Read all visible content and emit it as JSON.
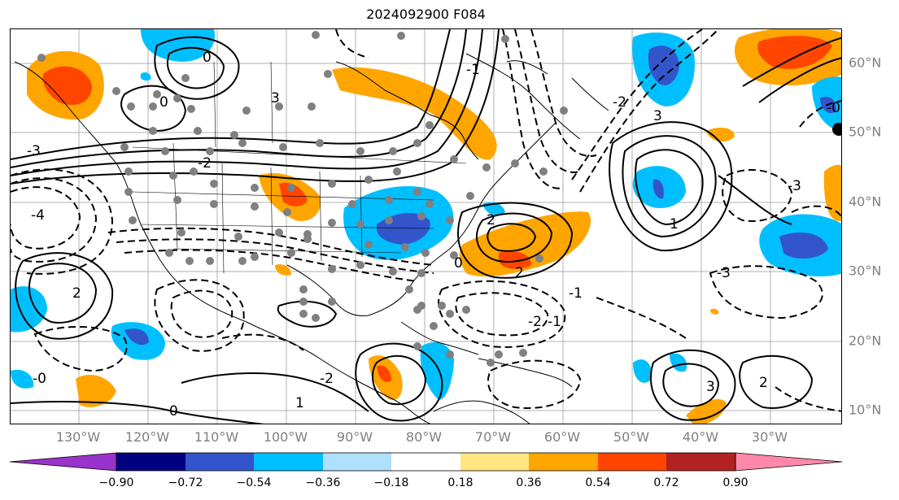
{
  "title": "2024092900 F084",
  "lon_labels": [
    "130°W",
    "120°W",
    "110°W",
    "100°W",
    "90°W",
    "80°W",
    "70°W",
    "60°W",
    "50°W",
    "40°W",
    "30°W"
  ],
  "lat_labels": [
    "60°N",
    "50°N",
    "40°N",
    "30°N",
    "20°N",
    "10°N"
  ],
  "contour_labels": [
    "0",
    "0",
    "-0",
    "-2",
    "-3",
    "-4",
    "-1",
    "2",
    "3",
    "-2",
    "0",
    "2",
    "3",
    "-2",
    "1",
    "-1",
    "-0",
    "2",
    "-3",
    "-2",
    "0",
    "-3",
    "2",
    "1",
    "3",
    "-1"
  ],
  "colorbar": {
    "colors": [
      "#9933cc",
      "#000080",
      "#3355cc",
      "#00bfff",
      "#b0e0ff",
      "#ffffff",
      "#ffe680",
      "#ffa500",
      "#ff4500",
      "#b22222",
      "#ff88aa"
    ],
    "labels": [
      "−0.90",
      "−0.72",
      "−0.54",
      "−0.36",
      "−0.18",
      "0.18",
      "0.36",
      "0.54",
      "0.72",
      "0.90"
    ]
  },
  "colors": {
    "positive_fill": "#ffa500",
    "strong_positive_fill": "#ff4500",
    "negative_fill": "#00bfff",
    "strong_negative_fill": "#3355cc",
    "station_marker": "#808080",
    "axis_label": "#808080",
    "contour_line": "#000000"
  }
}
